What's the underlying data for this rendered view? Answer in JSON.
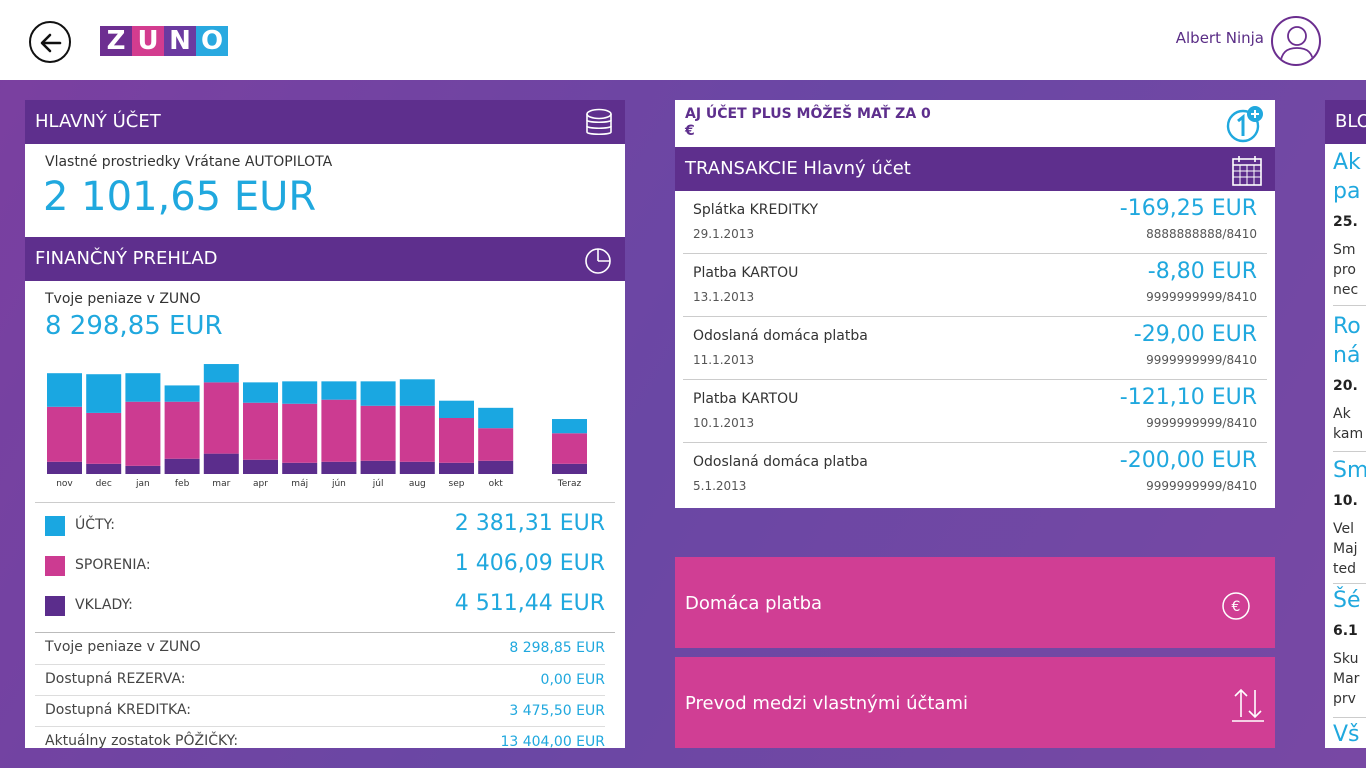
{
  "header": {
    "user_name": "Albert Ninja",
    "logo_letters": [
      "Z",
      "U",
      "N",
      "O"
    ],
    "logo_colors": [
      "#6d2f91",
      "#d33c8f",
      "#6b3aa0",
      "#29a9e0"
    ]
  },
  "main_account": {
    "title": "HLAVNÝ ÚČET",
    "label": "Vlastné prostriedky Vrátane AUTOPILOTA",
    "amount": "2 101,65 EUR"
  },
  "financial_overview": {
    "title": "FINANČNÝ PREHĽAD",
    "label": "Tvoje peniaze v ZUNO",
    "amount": "8 298,85 EUR",
    "legend": [
      {
        "label": "ÚČTY:",
        "value": "2 381,31 EUR",
        "color": "#1aa7e1"
      },
      {
        "label": "SPORENIA:",
        "value": "1 406,09 EUR",
        "color": "#cc3b91"
      },
      {
        "label": "VKLADY:",
        "value": "4 511,44 EUR",
        "color": "#5b2d8c"
      }
    ],
    "summary": [
      {
        "label": "Tvoje peniaze v ZUNO",
        "value": "8 298,85 EUR"
      },
      {
        "label": "Dostupná REZERVA:",
        "value": "0,00 EUR"
      },
      {
        "label": "Dostupná KREDITKA:",
        "value": "3 475,50 EUR"
      },
      {
        "label": "Aktuálny zostatok PÔŽIČKY:",
        "value": "13 404,00 EUR"
      }
    ]
  },
  "chart_data": {
    "type": "bar",
    "stacked": true,
    "categories": [
      "nov",
      "dec",
      "jan",
      "feb",
      "mar",
      "apr",
      "máj",
      "jún",
      "júl",
      "aug",
      "sep",
      "okt",
      "Teraz"
    ],
    "series": [
      {
        "color": "#5b2d8c",
        "values": [
          12,
          10,
          8,
          15,
          20,
          14,
          11,
          12,
          13,
          12,
          11,
          13,
          10
        ]
      },
      {
        "color": "#cc3b91",
        "values": [
          54,
          50,
          63,
          56,
          70,
          56,
          58,
          61,
          54,
          55,
          44,
          32,
          30
        ]
      },
      {
        "color": "#1aa7e1",
        "values": [
          33,
          38,
          28,
          16,
          18,
          20,
          22,
          18,
          24,
          26,
          17,
          20,
          14
        ]
      }
    ],
    "ylim": [
      0,
      110
    ]
  },
  "promo": {
    "text": "AJ ÚČET PLUS MÔŽEŠ MAŤ ZA 0 €"
  },
  "transactions": {
    "title": "TRANSAKCIE Hlavný účet",
    "items": [
      {
        "name": "Splátka KREDITKY",
        "date": "29.1.2013",
        "amount": "-169,25 EUR",
        "account": "8888888888/8410"
      },
      {
        "name": "Platba KARTOU",
        "date": "13.1.2013",
        "amount": "-8,80 EUR",
        "account": "9999999999/8410"
      },
      {
        "name": "Odoslaná domáca platba",
        "date": "11.1.2013",
        "amount": "-29,00 EUR",
        "account": "9999999999/8410"
      },
      {
        "name": "Platba KARTOU",
        "date": "10.1.2013",
        "amount": "-121,10 EUR",
        "account": "9999999999/8410"
      },
      {
        "name": "Odoslaná domáca platba",
        "date": "5.1.2013",
        "amount": "-200,00 EUR",
        "account": "9999999999/8410"
      }
    ]
  },
  "actions": {
    "domestic_payment": "Domáca platba",
    "own_transfer": "Prevod medzi vlastnými účtami"
  },
  "blog": {
    "title": "BLO",
    "items": [
      {
        "title": "Ak\npa",
        "date": "25.",
        "text": "Sm\npro\nnec"
      },
      {
        "title": "Ro\nná",
        "date": "20.",
        "text": "Ak\nkam"
      },
      {
        "title": "Sm",
        "date": "10.",
        "text": "Vel\nMaj\nted"
      },
      {
        "title": "Šé",
        "date": "6.1",
        "text": "Sku\nMar\nprv"
      },
      {
        "title": "Vš",
        "date": "",
        "text": ""
      }
    ]
  }
}
